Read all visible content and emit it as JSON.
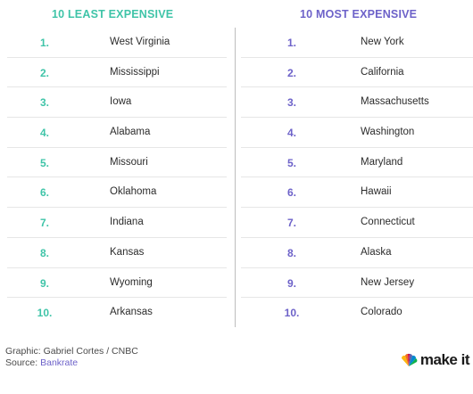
{
  "colors": {
    "least": "#3fc4a8",
    "most": "#6d62c9",
    "link": "#6d62c9"
  },
  "least": {
    "title": "10 LEAST EXPENSIVE",
    "items": [
      {
        "rank": "1.",
        "state": "West Virginia"
      },
      {
        "rank": "2.",
        "state": "Mississippi"
      },
      {
        "rank": "3.",
        "state": "Iowa"
      },
      {
        "rank": "4.",
        "state": "Alabama"
      },
      {
        "rank": "5.",
        "state": "Missouri"
      },
      {
        "rank": "6.",
        "state": "Oklahoma"
      },
      {
        "rank": "7.",
        "state": "Indiana"
      },
      {
        "rank": "8.",
        "state": "Kansas"
      },
      {
        "rank": "9.",
        "state": "Wyoming"
      },
      {
        "rank": "10.",
        "state": "Arkansas"
      }
    ]
  },
  "most": {
    "title": "10 MOST EXPENSIVE",
    "items": [
      {
        "rank": "1.",
        "state": "New York"
      },
      {
        "rank": "2.",
        "state": "California"
      },
      {
        "rank": "3.",
        "state": "Massachusetts"
      },
      {
        "rank": "4.",
        "state": "Washington"
      },
      {
        "rank": "5.",
        "state": "Maryland"
      },
      {
        "rank": "6.",
        "state": "Hawaii"
      },
      {
        "rank": "7.",
        "state": "Connecticut"
      },
      {
        "rank": "8.",
        "state": "Alaska"
      },
      {
        "rank": "9.",
        "state": "New Jersey"
      },
      {
        "rank": "10.",
        "state": "Colorado"
      }
    ]
  },
  "footer": {
    "graphic_credit": "Graphic: Gabriel Cortes / CNBC",
    "source_label": "Source: ",
    "source_name": "Bankrate"
  },
  "logo": {
    "icon": "nbc-peacock-icon",
    "text": "make it"
  }
}
